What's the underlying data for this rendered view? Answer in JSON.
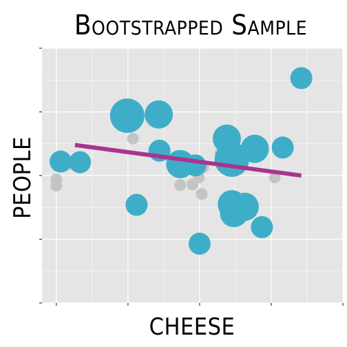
{
  "chart_data": {
    "type": "scatter",
    "title": "Bootstrapped Sample",
    "xlabel": "CHEESE",
    "ylabel": "PEOPLE",
    "xlim": [
      -0.2,
      4.0
    ],
    "ylim": [
      -2.0,
      2.0
    ],
    "grid": true,
    "tick_labels_shown": false,
    "legend": "none",
    "colors": {
      "panel": "#e5e5e5",
      "grid": "#ffffff",
      "resampled_points": "#3eaec8",
      "original_points": "#c4c4c4",
      "fit_line": "#a7358f",
      "tick": "#333333"
    },
    "series": [
      {
        "role": "original",
        "points": [
          {
            "x": 0.0,
            "y": -0.06
          },
          {
            "x": 0.0,
            "y": -0.16
          },
          {
            "x": 0.17,
            "y": 0.18
          },
          {
            "x": 1.07,
            "y": 0.58
          },
          {
            "x": 1.73,
            "y": -0.15
          },
          {
            "x": 1.9,
            "y": -0.14
          },
          {
            "x": 1.99,
            "y": -0.03
          },
          {
            "x": 2.05,
            "y": 0.13
          },
          {
            "x": 2.03,
            "y": -0.29
          },
          {
            "x": 2.29,
            "y": 0.35
          },
          {
            "x": 3.05,
            "y": -0.03
          }
        ]
      },
      {
        "role": "resampled",
        "points": [
          {
            "x": 0.06,
            "y": 0.22,
            "size": 2
          },
          {
            "x": 0.33,
            "y": 0.21,
            "size": 2
          },
          {
            "x": 0.99,
            "y": 0.94,
            "size": 4
          },
          {
            "x": 1.12,
            "y": -0.46,
            "size": 2
          },
          {
            "x": 1.43,
            "y": 0.96,
            "size": 3
          },
          {
            "x": 1.44,
            "y": 0.39,
            "size": 2
          },
          {
            "x": 1.73,
            "y": 0.18,
            "size": 3
          },
          {
            "x": 1.94,
            "y": 0.16,
            "size": 2
          },
          {
            "x": 2.0,
            "y": -1.07,
            "size": 2
          },
          {
            "x": 2.38,
            "y": 0.58,
            "size": 3
          },
          {
            "x": 2.45,
            "y": 0.25,
            "size": 4
          },
          {
            "x": 2.45,
            "y": -0.45,
            "size": 3
          },
          {
            "x": 2.48,
            "y": -0.59,
            "size": 3
          },
          {
            "x": 2.63,
            "y": -0.49,
            "size": 3
          },
          {
            "x": 2.77,
            "y": 0.42,
            "size": 3
          },
          {
            "x": 2.87,
            "y": -0.81,
            "size": 2
          },
          {
            "x": 3.16,
            "y": 0.44,
            "size": 2
          },
          {
            "x": 3.42,
            "y": 1.53,
            "size": 2
          }
        ]
      }
    ],
    "fit_line": {
      "x": [
        0.26,
        3.42
      ],
      "y": [
        0.48,
        0.0
      ]
    }
  }
}
